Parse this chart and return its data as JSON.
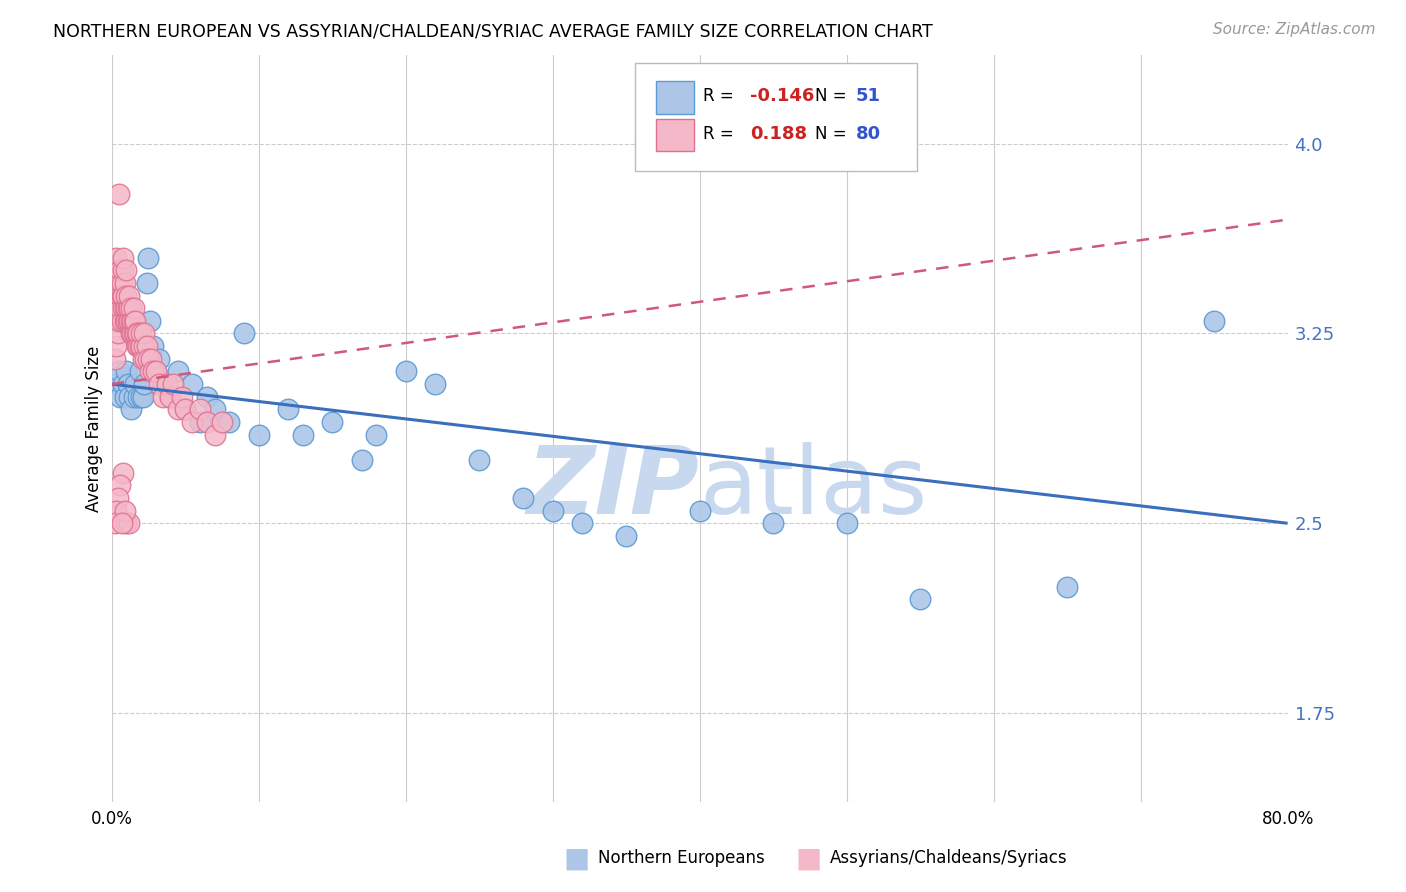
{
  "title": "NORTHERN EUROPEAN VS ASSYRIAN/CHALDEAN/SYRIAC AVERAGE FAMILY SIZE CORRELATION CHART",
  "source": "Source: ZipAtlas.com",
  "ylabel": "Average Family Size",
  "xlim": [
    0.0,
    0.8
  ],
  "ylim": [
    1.4,
    4.35
  ],
  "yticks": [
    1.75,
    2.5,
    3.25,
    4.0
  ],
  "xticks": [
    0.0,
    0.1,
    0.2,
    0.3,
    0.4,
    0.5,
    0.6,
    0.7,
    0.8
  ],
  "xtick_labels": [
    "0.0%",
    "",
    "",
    "",
    "",
    "",
    "",
    "",
    "80.0%"
  ],
  "blue_color": "#adc6e8",
  "blue_edge": "#5b9bd5",
  "pink_color": "#f4b8c8",
  "pink_edge": "#e07090",
  "blue_line_color": "#3a6fbd",
  "pink_line_color": "#d05878",
  "watermark_color": "#c8d8ee",
  "blue_x": [
    0.003,
    0.005,
    0.006,
    0.008,
    0.009,
    0.01,
    0.011,
    0.012,
    0.013,
    0.015,
    0.016,
    0.018,
    0.019,
    0.02,
    0.021,
    0.022,
    0.024,
    0.025,
    0.026,
    0.028,
    0.03,
    0.032,
    0.035,
    0.04,
    0.045,
    0.05,
    0.055,
    0.06,
    0.065,
    0.07,
    0.08,
    0.09,
    0.1,
    0.12,
    0.13,
    0.15,
    0.17,
    0.18,
    0.2,
    0.22,
    0.25,
    0.28,
    0.3,
    0.32,
    0.35,
    0.4,
    0.45,
    0.5,
    0.55,
    0.65,
    0.75
  ],
  "blue_y": [
    3.05,
    3.1,
    3.0,
    3.05,
    3.0,
    3.1,
    3.05,
    3.0,
    2.95,
    3.0,
    3.05,
    3.0,
    3.1,
    3.0,
    3.0,
    3.05,
    3.45,
    3.55,
    3.3,
    3.2,
    3.1,
    3.15,
    3.05,
    3.0,
    3.1,
    2.95,
    3.05,
    2.9,
    3.0,
    2.95,
    2.9,
    3.25,
    2.85,
    2.95,
    2.85,
    2.9,
    2.75,
    2.85,
    3.1,
    3.05,
    2.75,
    2.6,
    2.55,
    2.5,
    2.45,
    2.55,
    2.5,
    2.5,
    2.2,
    2.25,
    3.3
  ],
  "pink_x": [
    0.002,
    0.002,
    0.003,
    0.003,
    0.004,
    0.004,
    0.005,
    0.005,
    0.005,
    0.006,
    0.006,
    0.006,
    0.007,
    0.007,
    0.007,
    0.008,
    0.008,
    0.008,
    0.008,
    0.009,
    0.009,
    0.009,
    0.01,
    0.01,
    0.01,
    0.01,
    0.011,
    0.011,
    0.012,
    0.012,
    0.012,
    0.013,
    0.013,
    0.013,
    0.014,
    0.014,
    0.015,
    0.015,
    0.015,
    0.016,
    0.016,
    0.017,
    0.017,
    0.018,
    0.018,
    0.019,
    0.02,
    0.02,
    0.021,
    0.022,
    0.022,
    0.023,
    0.024,
    0.025,
    0.026,
    0.027,
    0.028,
    0.03,
    0.032,
    0.035,
    0.038,
    0.04,
    0.042,
    0.045,
    0.048,
    0.05,
    0.055,
    0.06,
    0.065,
    0.07,
    0.075,
    0.008,
    0.006,
    0.004,
    0.003,
    0.002,
    0.01,
    0.012,
    0.009,
    0.007
  ],
  "pink_y": [
    3.15,
    3.3,
    3.2,
    3.55,
    3.25,
    3.4,
    3.3,
    3.45,
    3.8,
    3.35,
    3.4,
    3.5,
    3.3,
    3.4,
    3.45,
    3.35,
    3.4,
    3.5,
    3.55,
    3.3,
    3.35,
    3.45,
    3.3,
    3.35,
    3.4,
    3.5,
    3.3,
    3.35,
    3.3,
    3.35,
    3.4,
    3.25,
    3.3,
    3.35,
    3.25,
    3.3,
    3.25,
    3.3,
    3.35,
    3.25,
    3.3,
    3.2,
    3.25,
    3.2,
    3.25,
    3.2,
    3.2,
    3.25,
    3.15,
    3.2,
    3.25,
    3.15,
    3.2,
    3.15,
    3.1,
    3.15,
    3.1,
    3.1,
    3.05,
    3.0,
    3.05,
    3.0,
    3.05,
    2.95,
    3.0,
    2.95,
    2.9,
    2.95,
    2.9,
    2.85,
    2.9,
    2.7,
    2.65,
    2.6,
    2.55,
    2.5,
    2.5,
    2.5,
    2.55,
    2.5
  ],
  "blue_trend_x": [
    0.0,
    0.8
  ],
  "blue_trend_y": [
    3.05,
    2.5
  ],
  "pink_trend_x": [
    0.0,
    0.8
  ],
  "pink_trend_y": [
    3.05,
    3.7
  ]
}
